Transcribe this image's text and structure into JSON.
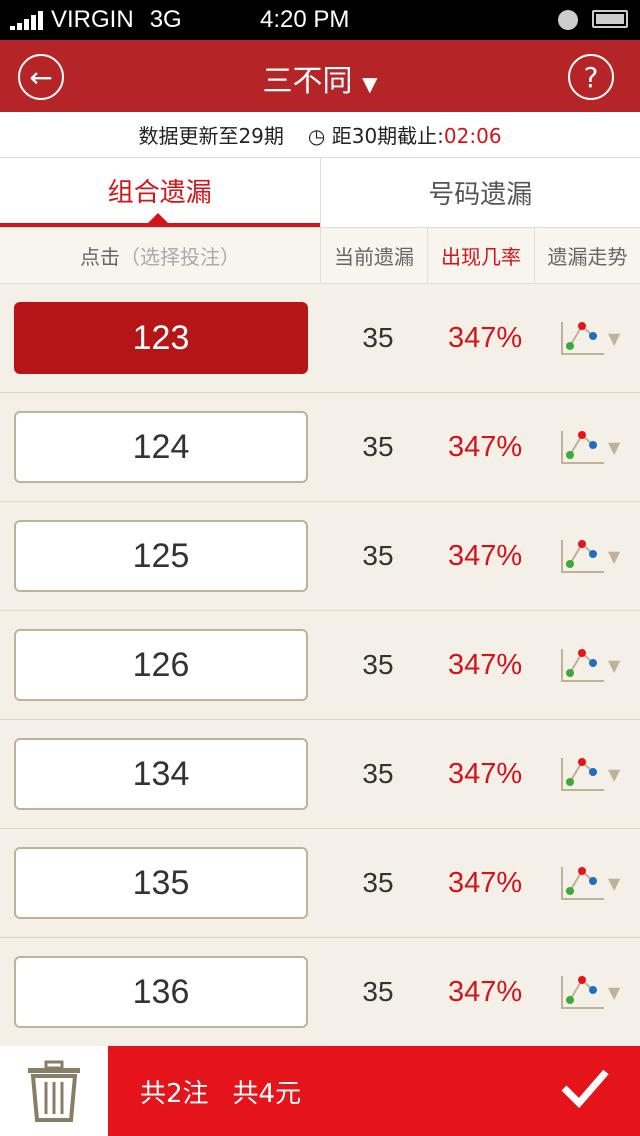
{
  "status": {
    "carrier": "VIRGIN",
    "network": "3G",
    "time": "4:20 PM"
  },
  "nav": {
    "title": "三不同",
    "back_icon": "back-arrow-icon",
    "help_label": "?"
  },
  "info": {
    "updated": "数据更新至29期",
    "deadline_label": "距30期截止:",
    "countdown": "02:06"
  },
  "tabs": [
    {
      "label": "组合遗漏",
      "active": true
    },
    {
      "label": "号码遗漏",
      "active": false
    }
  ],
  "columns": {
    "select": "点击",
    "select_hint": "（选择投注）",
    "current": "当前遗漏",
    "rate": "出现几率",
    "trend": "遗漏走势"
  },
  "rows": [
    {
      "number": "123",
      "current": "35",
      "rate": "347%",
      "selected": true
    },
    {
      "number": "124",
      "current": "35",
      "rate": "347%",
      "selected": false
    },
    {
      "number": "125",
      "current": "35",
      "rate": "347%",
      "selected": false
    },
    {
      "number": "126",
      "current": "35",
      "rate": "347%",
      "selected": false
    },
    {
      "number": "134",
      "current": "35",
      "rate": "347%",
      "selected": false
    },
    {
      "number": "135",
      "current": "35",
      "rate": "347%",
      "selected": false
    },
    {
      "number": "136",
      "current": "35",
      "rate": "347%",
      "selected": false
    }
  ],
  "footer": {
    "bets": "共2注",
    "amount": "共4元"
  },
  "colors": {
    "nav": "#b52426",
    "accent": "#d3141a",
    "footer": "#e5141b"
  }
}
